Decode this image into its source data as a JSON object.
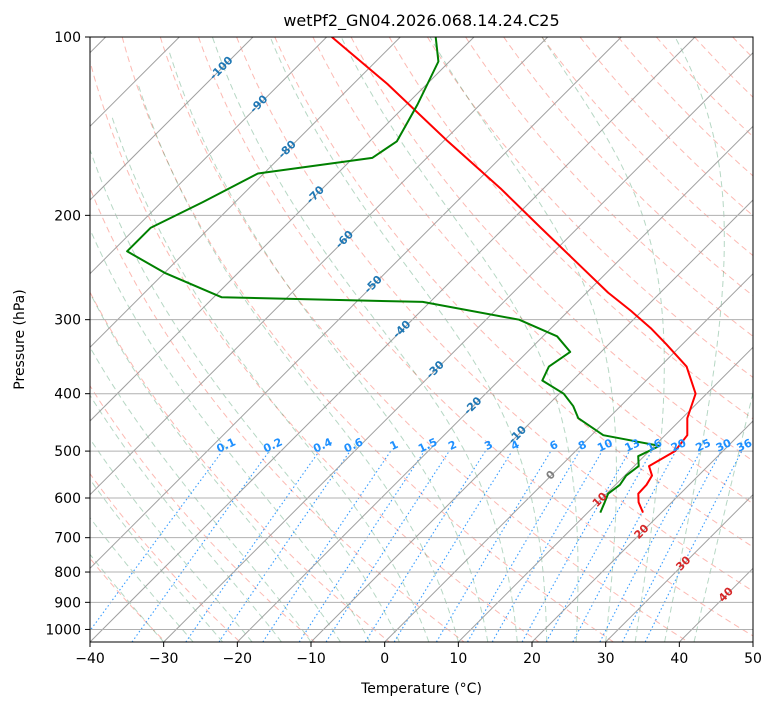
{
  "chart_data": {
    "type": "line",
    "title": "wetPf2_GN04.2026.068.14.24.C25",
    "xlabel": "Temperature (°C)",
    "ylabel": "Pressure (hPa)",
    "xlim": [
      -40,
      50
    ],
    "ylim": [
      1050,
      100
    ],
    "y_scale": "log",
    "skew_degrees": 45,
    "grid": true,
    "xticks": [
      "−40",
      "−30",
      "−20",
      "−10",
      "0",
      "10",
      "20",
      "30",
      "40",
      "50"
    ],
    "xtick_values": [
      -40,
      -30,
      -20,
      -10,
      0,
      10,
      20,
      30,
      40,
      50
    ],
    "yticks": [
      "1000",
      "900",
      "800",
      "700",
      "600",
      "500",
      "400",
      "300",
      "200",
      "100"
    ],
    "ytick_values": [
      1000,
      900,
      800,
      700,
      600,
      500,
      400,
      300,
      200,
      100
    ],
    "series": [
      {
        "color": "#ff0000",
        "role": "temperature",
        "pressure": [
          635,
          610,
          590,
          570,
          550,
          530,
          500,
          470,
          440,
          400,
          360,
          330,
          310,
          290,
          270,
          240,
          210,
          180,
          150,
          120,
          100
        ],
        "values": [
          17.5,
          15.5,
          14.3,
          14.2,
          13.7,
          12.0,
          13.5,
          13.0,
          10.7,
          8.5,
          3.6,
          -2.2,
          -6.5,
          -11.5,
          -17.1,
          -25.5,
          -35.0,
          -45.9,
          -59.4,
          -75.4,
          -89.3
        ]
      },
      {
        "color": "#008000",
        "role": "dewpoint",
        "pressure": [
          635,
          610,
          590,
          570,
          550,
          530,
          510,
          490,
          470,
          440,
          420,
          400,
          380,
          360,
          340,
          320,
          300,
          280,
          275,
          250,
          230,
          210,
          190,
          170,
          160,
          150,
          130,
          110,
          100
        ],
        "values": [
          11.7,
          10.9,
          10.2,
          10.6,
          10.2,
          10.6,
          9.2,
          10.7,
          1.6,
          -4.1,
          -6.4,
          -9.4,
          -14.1,
          -15.1,
          -14.2,
          -18.1,
          -25.5,
          -41.0,
          -68.9,
          -80.0,
          -88.0,
          -88.0,
          -84.4,
          -80.8,
          -67.4,
          -66.3,
          -68.5,
          -71.5,
          -75.2
        ]
      }
    ],
    "dry_adiabats": {
      "color": "#fa8072",
      "labels": []
    },
    "moist_adiabats": {
      "color": "#2e8b57",
      "labels": []
    },
    "isotherm_labels": {
      "color": "#1f77b4",
      "values": [
        "-100",
        "-90",
        "-80",
        "-70",
        "-60",
        "-50",
        "-40",
        "-30",
        "-20",
        "-10"
      ]
    },
    "mixing_ratio_labels": {
      "color": "#1e90ff",
      "values": [
        "0.1",
        "0.2",
        "0.4",
        "0.6",
        "1",
        "1.5",
        "2",
        "3",
        "4",
        "6",
        "8",
        "10",
        "13",
        "16",
        "20",
        "25",
        "30",
        "36"
      ],
      "g_per_kg": [
        0.1,
        0.2,
        0.4,
        0.6,
        1,
        1.5,
        2,
        3,
        4,
        6,
        8,
        10,
        13,
        16,
        20,
        25,
        30,
        36
      ]
    },
    "isotherm_labels_warm": {
      "color": "#d62728",
      "values": [
        "0",
        "10",
        "20",
        "30",
        "40"
      ],
      "zero_color": "#808080"
    }
  }
}
